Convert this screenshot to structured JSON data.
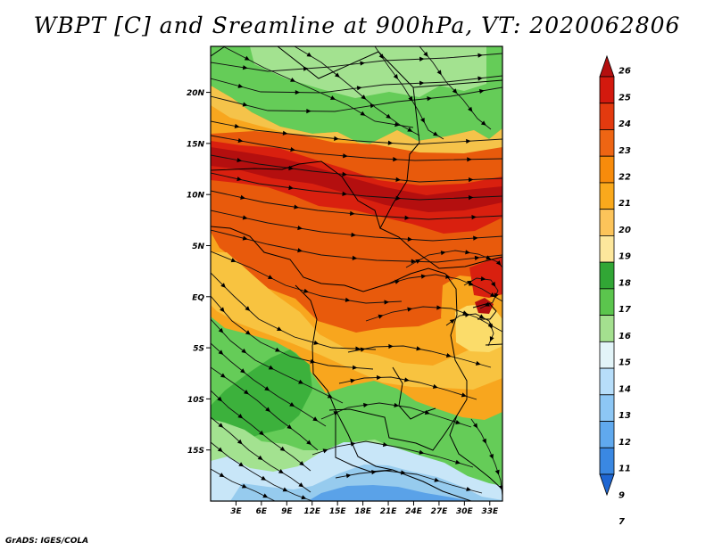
{
  "title": "WBPT [C] and Sreamline at 900hPa, VT: 2020062806",
  "footer": "GrADS: IGES/COLA",
  "map": {
    "lat_labels": [
      "20N",
      "15N",
      "10N",
      "5N",
      "EQ",
      "5S",
      "10S",
      "15S"
    ],
    "lon_labels": [
      "3E",
      "6E",
      "9E",
      "12E",
      "15E",
      "18E",
      "21E",
      "24E",
      "27E",
      "30E",
      "33E"
    ],
    "lat_values": [
      20,
      15,
      10,
      5,
      0,
      -5,
      -10,
      -15
    ],
    "lon_values": [
      3,
      6,
      9,
      12,
      15,
      18,
      21,
      24,
      27,
      30,
      33
    ],
    "lon_range": [
      0,
      34.5
    ],
    "lat_range": [
      -20,
      24.5
    ],
    "colors": {
      "green_dark": "#3cb13c",
      "green_mid": "#65cc58",
      "green_light": "#a3e290",
      "orange": "#f59b00",
      "orange_red": "#e85a0c",
      "red": "#d9200f",
      "dark_red": "#b40f0f",
      "yellow": "#fbdc6a",
      "light_yellow": "#fdefa0",
      "pale_blue": "#c8e6f8",
      "light_blue": "#96cbee",
      "blue": "#5aa2e8"
    }
  },
  "colorbar": {
    "labels": [
      "26",
      "25",
      "24",
      "23",
      "22",
      "21",
      "20",
      "19",
      "18",
      "17",
      "16",
      "15",
      "14",
      "13",
      "12",
      "11",
      "9",
      "7"
    ],
    "colors": [
      "#b40f0f",
      "#d3190e",
      "#e33a0f",
      "#ee6513",
      "#f78b0b",
      "#faa91c",
      "#fcc45a",
      "#fde79c",
      "#31a635",
      "#5bc54d",
      "#a4e08f",
      "#e2f4f8",
      "#b7defa",
      "#8dc7f5",
      "#60a9ee",
      "#3a88e2",
      "#1e66d2"
    ]
  }
}
